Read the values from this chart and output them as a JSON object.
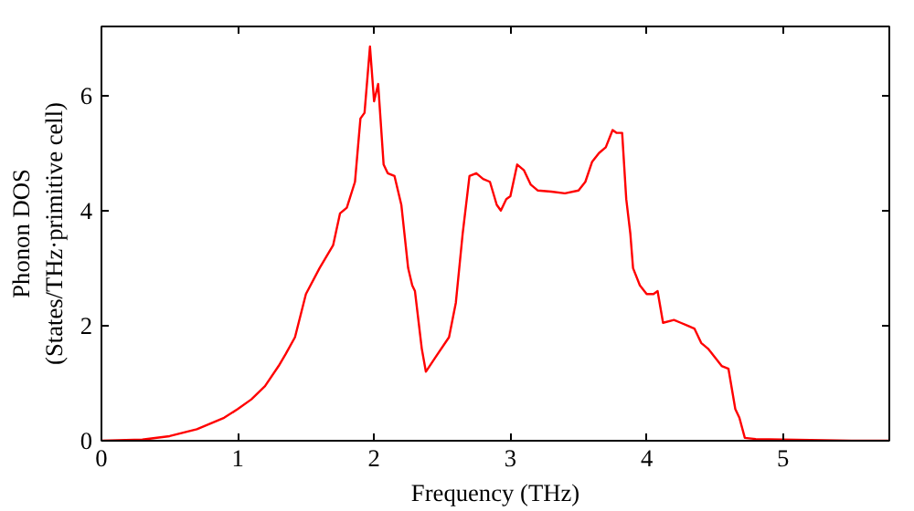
{
  "chart_data": {
    "type": "line",
    "xlabel": "Frequency (THz)",
    "ylabel": "Phonon DOS\n(States/THz·primitive cell)",
    "xlim": [
      0,
      5.78
    ],
    "ylim": [
      0,
      7.2
    ],
    "xticks": [
      0,
      1,
      2,
      3,
      4,
      5
    ],
    "yticks": [
      0,
      2,
      4,
      6
    ],
    "grid": false,
    "series": [
      {
        "color": "#ff0000",
        "x": [
          0,
          0.3,
          0.5,
          0.7,
          0.9,
          1.0,
          1.1,
          1.2,
          1.3,
          1.35,
          1.42,
          1.5,
          1.6,
          1.7,
          1.75,
          1.8,
          1.86,
          1.9,
          1.93,
          1.97,
          2.0,
          2.03,
          2.07,
          2.1,
          2.15,
          2.2,
          2.25,
          2.28,
          2.3,
          2.35,
          2.38,
          2.45,
          2.55,
          2.6,
          2.65,
          2.7,
          2.75,
          2.8,
          2.85,
          2.9,
          2.93,
          2.97,
          3.0,
          3.05,
          3.1,
          3.15,
          3.2,
          3.3,
          3.4,
          3.5,
          3.55,
          3.6,
          3.65,
          3.7,
          3.75,
          3.78,
          3.82,
          3.85,
          3.88,
          3.9,
          3.95,
          4.0,
          4.05,
          4.08,
          4.12,
          4.2,
          4.25,
          4.3,
          4.35,
          4.4,
          4.45,
          4.5,
          4.55,
          4.6,
          4.65,
          4.68,
          4.72,
          4.8,
          5.0,
          5.5,
          5.78
        ],
        "values": [
          0,
          0.02,
          0.08,
          0.2,
          0.4,
          0.55,
          0.72,
          0.95,
          1.3,
          1.5,
          1.8,
          2.55,
          3.0,
          3.4,
          3.95,
          4.05,
          4.5,
          5.6,
          5.7,
          6.85,
          5.9,
          6.2,
          4.8,
          4.65,
          4.6,
          4.1,
          3.0,
          2.7,
          2.6,
          1.6,
          1.2,
          1.45,
          1.8,
          2.4,
          3.6,
          4.6,
          4.65,
          4.55,
          4.5,
          4.1,
          4.0,
          4.2,
          4.25,
          4.8,
          4.7,
          4.45,
          4.35,
          4.33,
          4.3,
          4.35,
          4.5,
          4.85,
          5.0,
          5.1,
          5.4,
          5.35,
          5.35,
          4.2,
          3.6,
          3.0,
          2.7,
          2.55,
          2.55,
          2.6,
          2.05,
          2.1,
          2.05,
          2.0,
          1.95,
          1.7,
          1.6,
          1.45,
          1.3,
          1.25,
          0.55,
          0.4,
          0.05,
          0.03,
          0.02,
          0.0,
          0.0
        ]
      }
    ]
  }
}
